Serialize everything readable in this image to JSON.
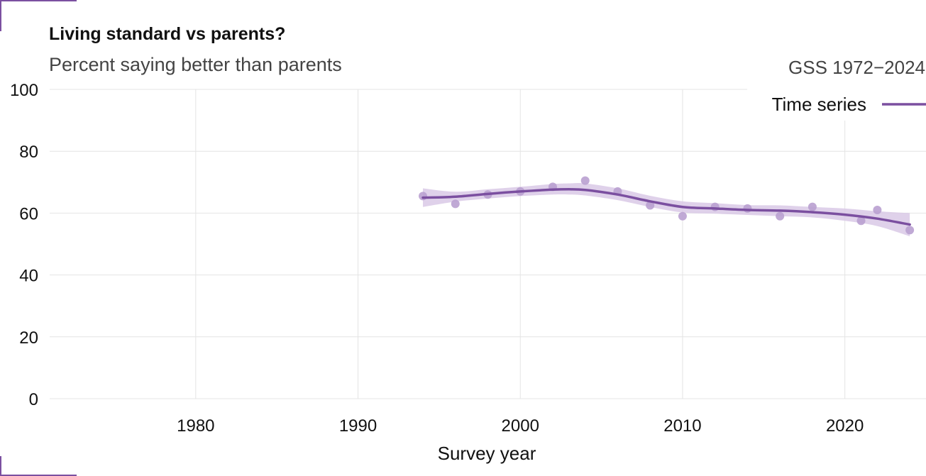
{
  "header": {
    "title": "Living standard vs parents?",
    "subtitle": "Percent saying better than parents",
    "source": "GSS 1972−2024"
  },
  "colors": {
    "accent": "#7b4fa0",
    "points": "#b9a0d0",
    "band": "#d9c9e6",
    "grid": "#e4e4e4"
  },
  "chart_data": {
    "type": "scatter",
    "title": "Living standard vs parents?",
    "subtitle": "Percent saying better than parents",
    "xlabel": "Survey year",
    "ylabel": "",
    "xlim": [
      1971,
      2025
    ],
    "ylim": [
      0,
      100
    ],
    "x_ticks": [
      1980,
      1990,
      2000,
      2010,
      2020
    ],
    "y_ticks": [
      0,
      20,
      40,
      60,
      80,
      100
    ],
    "grid": true,
    "legend": {
      "placement": "top-right",
      "entries": [
        "Time series"
      ]
    },
    "points": [
      {
        "x": 1994,
        "y": 65.5
      },
      {
        "x": 1996,
        "y": 63.0
      },
      {
        "x": 1998,
        "y": 66.0
      },
      {
        "x": 2000,
        "y": 67.0
      },
      {
        "x": 2002,
        "y": 68.5
      },
      {
        "x": 2004,
        "y": 70.5
      },
      {
        "x": 2006,
        "y": 67.0
      },
      {
        "x": 2008,
        "y": 62.5
      },
      {
        "x": 2010,
        "y": 59.0
      },
      {
        "x": 2012,
        "y": 62.0
      },
      {
        "x": 2014,
        "y": 61.5
      },
      {
        "x": 2016,
        "y": 59.0
      },
      {
        "x": 2018,
        "y": 62.0
      },
      {
        "x": 2021,
        "y": 57.5
      },
      {
        "x": 2022,
        "y": 61.0
      },
      {
        "x": 2024,
        "y": 54.5
      }
    ],
    "series": [
      {
        "name": "Time series",
        "x": [
          1994,
          1996,
          1998,
          2000,
          2002,
          2003,
          2004,
          2006,
          2008,
          2010,
          2012,
          2014,
          2016,
          2018,
          2020,
          2022,
          2024
        ],
        "values": [
          65.0,
          65.3,
          66.2,
          67.0,
          67.6,
          67.7,
          67.5,
          66.0,
          63.8,
          62.0,
          61.5,
          61.0,
          60.8,
          60.3,
          59.5,
          58.2,
          56.3
        ],
        "lower": [
          62.0,
          63.7,
          64.7,
          65.5,
          66.0,
          66.0,
          65.7,
          64.2,
          62.0,
          60.2,
          59.8,
          59.4,
          59.0,
          58.6,
          57.5,
          55.8,
          52.5
        ],
        "upper": [
          68.0,
          66.9,
          67.7,
          68.5,
          69.4,
          69.6,
          69.6,
          68.0,
          65.6,
          63.8,
          63.2,
          62.6,
          62.5,
          62.0,
          61.5,
          60.6,
          60.0
        ]
      }
    ]
  }
}
